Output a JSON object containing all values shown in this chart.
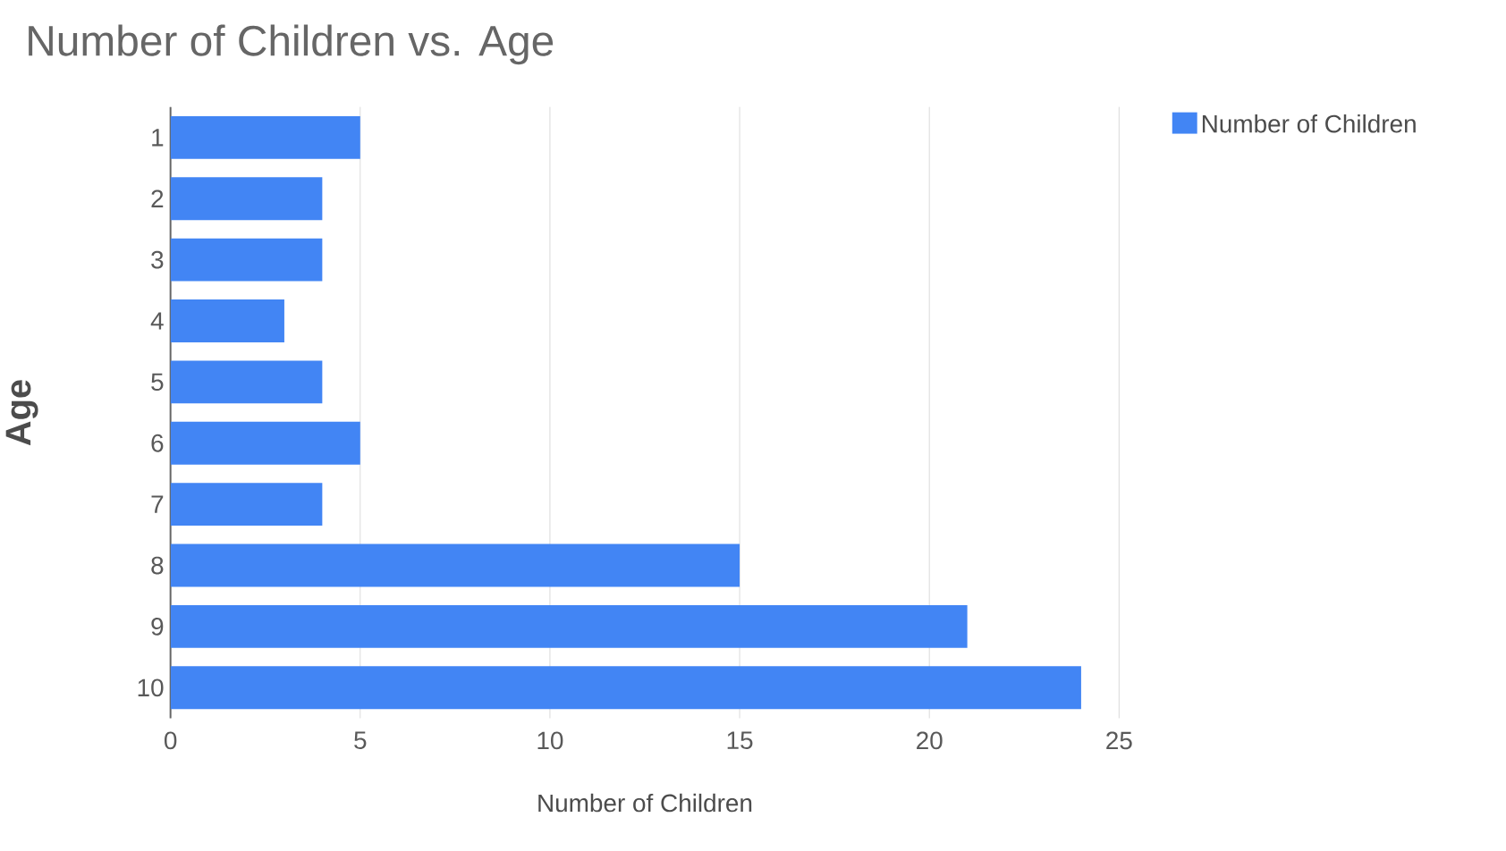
{
  "chart_data": {
    "type": "bar",
    "orientation": "horizontal",
    "title": "Number of Children vs. Age",
    "xlabel": "Number of Children",
    "ylabel": "Age",
    "categories": [
      "1",
      "2",
      "3",
      "4",
      "5",
      "6",
      "7",
      "8",
      "9",
      "10"
    ],
    "series": [
      {
        "name": "Number of Children",
        "color": "#4285f4",
        "values": [
          5,
          4,
          4,
          3,
          4,
          5,
          4,
          15,
          21,
          24
        ]
      }
    ],
    "xlim": [
      0,
      25
    ],
    "xticks": [
      0,
      5,
      10,
      15,
      20,
      25
    ],
    "grid": "x",
    "legend": "top right"
  }
}
